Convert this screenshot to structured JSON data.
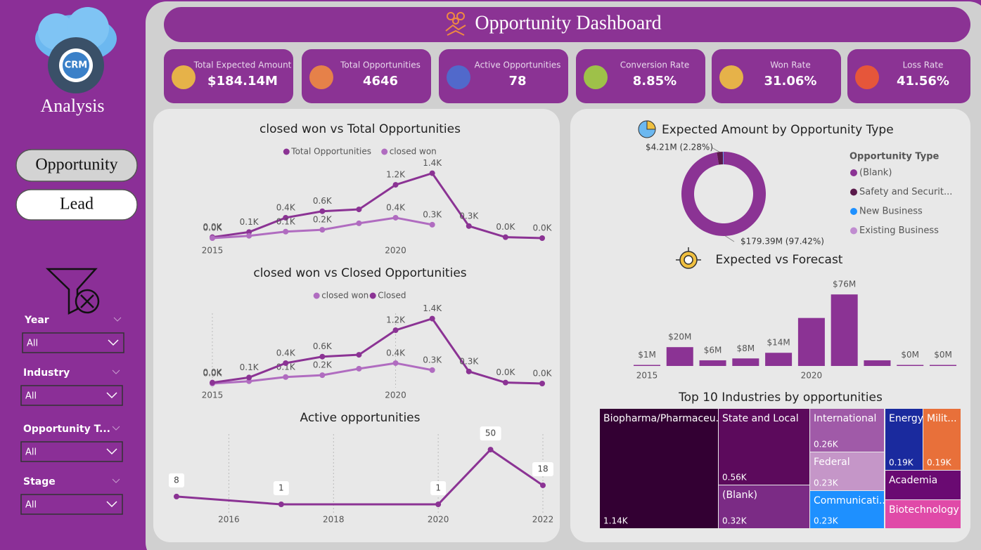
{
  "sidebar": {
    "logo": "CRM",
    "title": "Analysis",
    "nav": [
      "Opportunity",
      "Lead"
    ],
    "filters": [
      {
        "label": "Year",
        "value": "All"
      },
      {
        "label": "Industry",
        "value": "All"
      },
      {
        "label": "Opportunity T...",
        "value": "All"
      },
      {
        "label": "Stage",
        "value": "All"
      }
    ]
  },
  "header": {
    "title": "Opportunity Dashboard"
  },
  "kpis": [
    {
      "label": "Total Expected Amount",
      "value": "$184.14M"
    },
    {
      "label": "Total Opportunities",
      "value": "4646"
    },
    {
      "label": "Active Opportunities",
      "value": "78"
    },
    {
      "label": "Conversion Rate",
      "value": "8.85%"
    },
    {
      "label": "Won Rate",
      "value": "31.06%"
    },
    {
      "label": "Loss Rate",
      "value": "41.56%"
    }
  ],
  "chart_data": [
    {
      "type": "line",
      "title": "closed won vs Total Opportunities",
      "x": [
        2015,
        2016,
        2017,
        2018,
        2019,
        2020,
        2021,
        2022,
        2023,
        2024
      ],
      "xlim": [
        2015,
        2024
      ],
      "xticks": [
        2015,
        2020
      ],
      "grid": false,
      "series": [
        {
          "name": "Total Opportunities",
          "color": "#8b3394",
          "values": [
            0.02,
            0.13,
            0.44,
            0.58,
            0.62,
            1.15,
            1.4,
            0.26,
            0.02,
            0.0
          ],
          "value_labels": [
            "0.0K",
            "0.1K",
            "0.4K",
            "0.6K",
            null,
            "1.2K",
            "1.4K",
            "0.3K",
            "0.0K",
            "0.0K"
          ]
        },
        {
          "name": "closed won",
          "color": "#b06cc0",
          "values": [
            0.0,
            0.05,
            0.14,
            0.18,
            0.32,
            0.44,
            0.29,
            null,
            null,
            null
          ],
          "value_labels": [
            "0.0K",
            null,
            "0.1K",
            "0.2K",
            null,
            "0.4K",
            "0.3K",
            null,
            null,
            null
          ]
        }
      ]
    },
    {
      "type": "line",
      "title": "closed won vs Closed Opportunities",
      "x": [
        2015,
        2016,
        2017,
        2018,
        2019,
        2020,
        2021,
        2022,
        2023,
        2024
      ],
      "xlim": [
        2015,
        2024
      ],
      "xticks": [
        2015,
        2020
      ],
      "grid": true,
      "series": [
        {
          "name": "closed won",
          "color": "#b06cc0",
          "values": [
            0.0,
            0.05,
            0.14,
            0.18,
            0.32,
            0.44,
            0.29,
            null,
            null,
            null
          ],
          "value_labels": [
            "0.0K",
            null,
            "0.1K",
            "0.2K",
            null,
            "0.4K",
            "0.3K",
            null,
            null,
            null
          ]
        },
        {
          "name": "Closed",
          "color": "#8b3394",
          "values": [
            0.02,
            0.13,
            0.44,
            0.58,
            0.62,
            1.15,
            1.4,
            0.26,
            0.02,
            0.0
          ],
          "value_labels": [
            "0.0K",
            "0.1K",
            "0.4K",
            "0.6K",
            null,
            "1.2K",
            "1.4K",
            "0.3K",
            "0.0K",
            "0.0K"
          ]
        }
      ]
    },
    {
      "type": "line",
      "title": "Active opportunities",
      "x": [
        2015,
        2017,
        2020,
        2021,
        2022
      ],
      "xlim": [
        2015,
        2022
      ],
      "xticks": [
        2016,
        2018,
        2020,
        2022
      ],
      "grid": true,
      "color": "#8b3394",
      "values": [
        8,
        1,
        1,
        50,
        18
      ]
    },
    {
      "type": "pie",
      "title": "Expected Amount by Opportunity Type",
      "legend_title": "Opportunity Type",
      "categories": [
        "(Blank)",
        "Safety and Securit...",
        "New Business",
        "Existing Business"
      ],
      "values": [
        179.39,
        4.21,
        0.4,
        0.14
      ],
      "value_labels": [
        "$179.39M (97.42%)",
        "$4.21M (2.28%)",
        null,
        null
      ],
      "colors": [
        "#8b3394",
        "#5a1a4a",
        "#1e90ff",
        "#c08cd0"
      ]
    },
    {
      "type": "bar",
      "title": "Expected vs Forecast",
      "x": [
        2015,
        2016,
        2017,
        2018,
        2019,
        2020,
        2021,
        2022,
        2023,
        2024
      ],
      "xlim": [
        2015,
        2024
      ],
      "xticks": [
        2015,
        2020
      ],
      "values": [
        1,
        20,
        6,
        8,
        14,
        51,
        76,
        6,
        0,
        0
      ],
      "value_labels": [
        "$1M",
        "$20M",
        "$6M",
        "$8M",
        "$14M",
        null,
        "$76M",
        null,
        "$0M",
        "$0M"
      ],
      "color": "#8b3394"
    },
    {
      "type": "treemap",
      "title": "Top 10 Industries by opportunities",
      "categories": [
        "Biopharma/Pharmaceu...",
        "State and Local",
        "(Blank)",
        "International",
        "Federal",
        "Communicati...",
        "Energy",
        "Milit...",
        "Academia",
        "Biotechnology"
      ],
      "values": [
        1.14,
        0.56,
        0.32,
        0.26,
        0.23,
        0.23,
        0.19,
        0.19,
        0.18,
        0.17
      ],
      "value_labels": [
        "1.14K",
        "0.56K",
        "0.32K",
        "0.26K",
        "0.23K",
        "0.23K",
        "0.19K",
        "0.19K",
        null,
        null
      ],
      "colors": [
        "#330033",
        "#5c0a5c",
        "#7b2b85",
        "#a05aa8",
        "#c596c8",
        "#1e90ff",
        "#1a2a9e",
        "#e8703a",
        "#6a0a72",
        "#e04aa8"
      ]
    }
  ]
}
